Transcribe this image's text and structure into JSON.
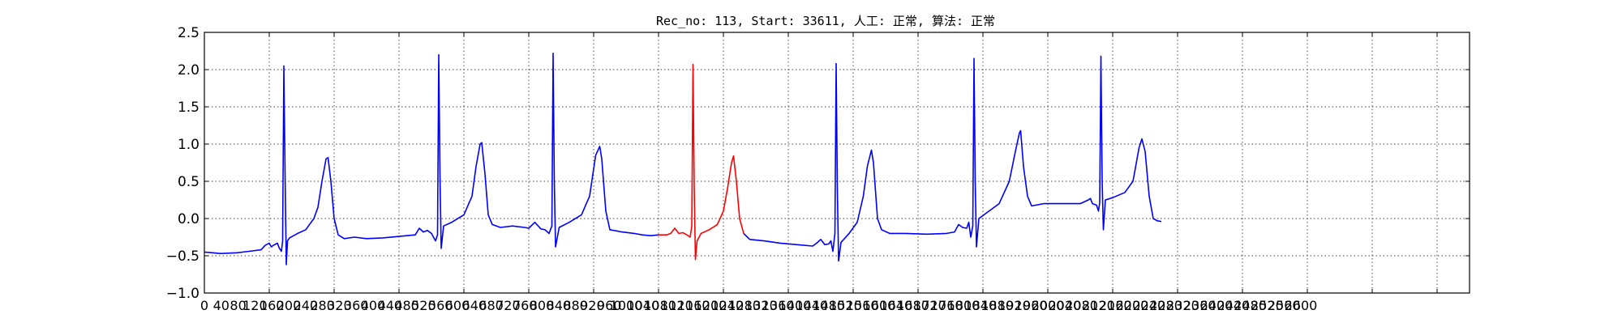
{
  "chart_data": {
    "type": "line",
    "title": "Rec_no: 113, Start: 33611, 人工: 正常, 算法: 正常",
    "xlabel": "",
    "ylabel": "",
    "xlim": [
      0,
      4320
    ],
    "ylim": [
      -1.0,
      2.5
    ],
    "grid": true,
    "grid_style": "dotted",
    "legend": "none",
    "x_tick_step": 80,
    "y_ticks": [
      -1.0,
      -0.5,
      0.0,
      0.5,
      1.0,
      1.5,
      2.0,
      2.5
    ],
    "y_tick_labels": [
      "−1.0",
      "−0.5",
      "0.0",
      "0.5",
      "1.0",
      "1.5",
      "2.0",
      "2.5"
    ],
    "x_tick_labels": [
      "0",
      "40",
      "80",
      "120",
      "160",
      "200",
      "240",
      "280",
      "320",
      "360",
      "400",
      "440",
      "480",
      "520",
      "560",
      "600",
      "640",
      "680",
      "720",
      "760",
      "800",
      "840",
      "880",
      "920",
      "960",
      "1000",
      "1040",
      "1080",
      "1120",
      "1160",
      "1200",
      "1240",
      "1280",
      "1320",
      "1360",
      "1400",
      "1440",
      "1480",
      "1520",
      "1560",
      "1600",
      "1640",
      "1680",
      "1720",
      "1760",
      "1800",
      "1840",
      "1880",
      "1920",
      "1960",
      "2000",
      "2040",
      "2080",
      "2120",
      "2160",
      "2200",
      "2240",
      "2280",
      "2320",
      "2360",
      "2400",
      "2440",
      "2480",
      "2520",
      "2560",
      "2600"
    ],
    "series": [
      {
        "color": "#0000ff",
        "points": [
          [
            0,
            -0.45
          ],
          [
            40,
            -0.47
          ],
          [
            80,
            -0.46
          ],
          [
            110,
            -0.44
          ],
          [
            140,
            -0.42
          ],
          [
            150,
            -0.36
          ],
          [
            160,
            -0.33
          ],
          [
            165,
            -0.38
          ],
          [
            170,
            -0.36
          ],
          [
            180,
            -0.33
          ],
          [
            185,
            -0.4
          ],
          [
            190,
            -0.44
          ],
          [
            193,
            -0.3
          ],
          [
            196,
            2.05
          ],
          [
            199,
            0.6
          ],
          [
            202,
            -0.62
          ],
          [
            205,
            -0.3
          ],
          [
            210,
            -0.26
          ],
          [
            230,
            -0.2
          ],
          [
            250,
            -0.15
          ],
          [
            270,
            0.0
          ],
          [
            280,
            0.15
          ],
          [
            290,
            0.5
          ],
          [
            300,
            0.8
          ],
          [
            305,
            0.82
          ],
          [
            312,
            0.5
          ],
          [
            320,
            0.0
          ],
          [
            330,
            -0.22
          ],
          [
            345,
            -0.27
          ],
          [
            370,
            -0.25
          ],
          [
            400,
            -0.27
          ],
          [
            440,
            -0.26
          ],
          [
            480,
            -0.24
          ],
          [
            520,
            -0.22
          ],
          [
            530,
            -0.13
          ],
          [
            540,
            -0.18
          ],
          [
            550,
            -0.16
          ],
          [
            560,
            -0.2
          ],
          [
            570,
            -0.3
          ],
          [
            575,
            -0.22
          ],
          [
            578,
            2.2
          ],
          [
            581,
            0.6
          ],
          [
            584,
            -0.4
          ],
          [
            590,
            -0.1
          ],
          [
            610,
            -0.05
          ],
          [
            640,
            0.05
          ],
          [
            660,
            0.3
          ],
          [
            670,
            0.7
          ],
          [
            680,
            1.0
          ],
          [
            684,
            1.02
          ],
          [
            692,
            0.6
          ],
          [
            700,
            0.05
          ],
          [
            710,
            -0.08
          ],
          [
            730,
            -0.12
          ],
          [
            760,
            -0.1
          ],
          [
            790,
            -0.12
          ],
          [
            800,
            -0.13
          ],
          [
            815,
            -0.05
          ],
          [
            820,
            -0.08
          ],
          [
            830,
            -0.14
          ],
          [
            840,
            -0.15
          ],
          [
            850,
            -0.2
          ],
          [
            857,
            -0.1
          ],
          [
            860,
            2.22
          ],
          [
            863,
            0.5
          ],
          [
            866,
            -0.38
          ],
          [
            875,
            -0.12
          ],
          [
            900,
            -0.05
          ],
          [
            930,
            0.05
          ],
          [
            950,
            0.3
          ],
          [
            965,
            0.85
          ],
          [
            975,
            0.97
          ],
          [
            980,
            0.8
          ],
          [
            990,
            0.1
          ],
          [
            1000,
            -0.15
          ],
          [
            1030,
            -0.18
          ],
          [
            1060,
            -0.2
          ],
          [
            1080,
            -0.22
          ],
          [
            1100,
            -0.23
          ],
          [
            1120,
            -0.22
          ]
        ]
      },
      {
        "color": "#ff0000",
        "points": [
          [
            1120,
            -0.22
          ],
          [
            1140,
            -0.22
          ],
          [
            1150,
            -0.2
          ],
          [
            1160,
            -0.13
          ],
          [
            1170,
            -0.2
          ],
          [
            1180,
            -0.19
          ],
          [
            1190,
            -0.22
          ],
          [
            1198,
            -0.25
          ],
          [
            1202,
            -0.1
          ],
          [
            1205,
            2.07
          ],
          [
            1208,
            0.4
          ],
          [
            1211,
            -0.55
          ],
          [
            1215,
            -0.3
          ],
          [
            1225,
            -0.2
          ],
          [
            1245,
            -0.15
          ],
          [
            1265,
            -0.08
          ],
          [
            1280,
            0.1
          ],
          [
            1290,
            0.4
          ],
          [
            1300,
            0.75
          ],
          [
            1305,
            0.84
          ],
          [
            1312,
            0.5
          ],
          [
            1320,
            0.0
          ],
          [
            1330,
            -0.2
          ]
        ]
      },
      {
        "color": "#0000ff",
        "points": [
          [
            1330,
            -0.2
          ],
          [
            1345,
            -0.28
          ],
          [
            1380,
            -0.3
          ],
          [
            1420,
            -0.33
          ],
          [
            1460,
            -0.35
          ],
          [
            1500,
            -0.37
          ],
          [
            1510,
            -0.33
          ],
          [
            1520,
            -0.28
          ],
          [
            1530,
            -0.35
          ],
          [
            1540,
            -0.34
          ],
          [
            1545,
            -0.3
          ],
          [
            1550,
            -0.44
          ],
          [
            1555,
            -0.2
          ],
          [
            1558,
            2.08
          ],
          [
            1561,
            0.4
          ],
          [
            1564,
            -0.57
          ],
          [
            1570,
            -0.32
          ],
          [
            1590,
            -0.2
          ],
          [
            1610,
            -0.05
          ],
          [
            1625,
            0.3
          ],
          [
            1635,
            0.7
          ],
          [
            1645,
            0.92
          ],
          [
            1650,
            0.75
          ],
          [
            1660,
            0.0
          ],
          [
            1670,
            -0.15
          ],
          [
            1690,
            -0.2
          ],
          [
            1730,
            -0.2
          ],
          [
            1780,
            -0.21
          ],
          [
            1830,
            -0.2
          ],
          [
            1850,
            -0.18
          ],
          [
            1860,
            -0.08
          ],
          [
            1870,
            -0.12
          ],
          [
            1880,
            -0.13
          ],
          [
            1885,
            -0.05
          ],
          [
            1890,
            -0.25
          ],
          [
            1895,
            -0.1
          ],
          [
            1898,
            2.15
          ],
          [
            1901,
            0.5
          ],
          [
            1904,
            -0.38
          ],
          [
            1910,
            0.0
          ],
          [
            1930,
            0.08
          ],
          [
            1960,
            0.2
          ],
          [
            1985,
            0.5
          ],
          [
            2000,
            0.9
          ],
          [
            2010,
            1.15
          ],
          [
            2013,
            1.18
          ],
          [
            2020,
            0.7
          ],
          [
            2030,
            0.3
          ],
          [
            2040,
            0.17
          ],
          [
            2070,
            0.2
          ],
          [
            2120,
            0.2
          ],
          [
            2160,
            0.2
          ],
          [
            2180,
            0.25
          ],
          [
            2185,
            0.27
          ],
          [
            2190,
            0.2
          ],
          [
            2200,
            0.18
          ],
          [
            2205,
            0.1
          ],
          [
            2208,
            0.22
          ],
          [
            2211,
            2.18
          ],
          [
            2214,
            0.5
          ],
          [
            2217,
            -0.15
          ],
          [
            2222,
            0.25
          ],
          [
            2240,
            0.28
          ],
          [
            2270,
            0.35
          ],
          [
            2290,
            0.5
          ],
          [
            2305,
            0.95
          ],
          [
            2312,
            1.07
          ],
          [
            2320,
            0.9
          ],
          [
            2330,
            0.3
          ],
          [
            2340,
            0.0
          ],
          [
            2350,
            -0.03
          ],
          [
            2360,
            -0.04
          ]
        ]
      }
    ]
  }
}
